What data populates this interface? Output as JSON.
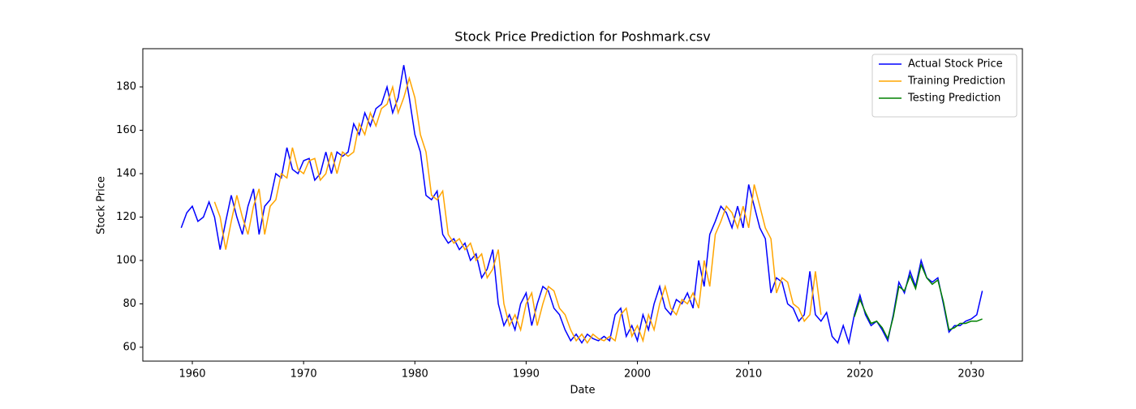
{
  "chart_data": {
    "type": "line",
    "title": "Stock Price Prediction for Poshmark.csv",
    "xlabel": "Date",
    "ylabel": "Stock Price",
    "x": [
      1959,
      1959.5,
      1960,
      1960.5,
      1961,
      1961.5,
      1962,
      1962.5,
      1963,
      1963.5,
      1964,
      1964.5,
      1965,
      1965.5,
      1966,
      1966.5,
      1967,
      1967.5,
      1968,
      1968.5,
      1969,
      1969.5,
      1970,
      1970.5,
      1971,
      1971.5,
      1972,
      1972.5,
      1973,
      1973.5,
      1974,
      1974.5,
      1975,
      1975.5,
      1976,
      1976.5,
      1977,
      1977.5,
      1978,
      1978.5,
      1979,
      1979.5,
      1980,
      1980.5,
      1981,
      1981.5,
      1982,
      1982.5,
      1983,
      1983.5,
      1984,
      1984.5,
      1985,
      1985.5,
      1986,
      1986.5,
      1987,
      1987.5,
      1988,
      1988.5,
      1989,
      1989.5,
      1990,
      1990.5,
      1991,
      1991.5,
      1992,
      1992.5,
      1993,
      1993.5,
      1994,
      1994.5,
      1995,
      1995.5,
      1996,
      1996.5,
      1997,
      1997.5,
      1998,
      1998.5,
      1999,
      1999.5,
      2000,
      2000.5,
      2001,
      2001.5,
      2002,
      2002.5,
      2003,
      2003.5,
      2004,
      2004.5,
      2005,
      2005.5,
      2006,
      2006.5,
      2007,
      2007.5,
      2008,
      2008.5,
      2009,
      2009.5,
      2010,
      2010.5,
      2011,
      2011.5,
      2012,
      2012.5,
      2013,
      2013.5,
      2014,
      2014.5,
      2015,
      2015.5,
      2016,
      2016.5,
      2017,
      2017.5,
      2018,
      2018.5,
      2019,
      2019.5,
      2020,
      2020.5,
      2021,
      2021.5,
      2022,
      2022.5,
      2023,
      2023.5,
      2024,
      2024.5,
      2025,
      2025.5,
      2026,
      2026.5,
      2027,
      2027.5,
      2028,
      2028.5,
      2029,
      2029.5,
      2030,
      2030.5,
      2031
    ],
    "series": [
      {
        "name": "Actual Stock Price",
        "color": "#0000ff",
        "values": [
          115,
          122,
          125,
          118,
          120,
          127,
          120,
          105,
          118,
          130,
          120,
          112,
          125,
          133,
          112,
          125,
          128,
          140,
          138,
          152,
          142,
          140,
          146,
          147,
          137,
          140,
          150,
          140,
          150,
          148,
          150,
          163,
          158,
          168,
          162,
          170,
          172,
          180,
          168,
          175,
          190,
          175,
          158,
          150,
          130,
          128,
          132,
          112,
          108,
          110,
          105,
          108,
          100,
          103,
          92,
          96,
          105,
          80,
          70,
          75,
          68,
          80,
          85,
          70,
          80,
          88,
          86,
          78,
          75,
          68,
          63,
          66,
          62,
          66,
          64,
          63,
          65,
          63,
          75,
          78,
          65,
          70,
          63,
          75,
          68,
          80,
          88,
          78,
          75,
          82,
          80,
          85,
          78,
          100,
          88,
          112,
          118,
          125,
          122,
          115,
          125,
          115,
          135,
          125,
          115,
          110,
          85,
          92,
          90,
          80,
          78,
          72,
          75,
          95,
          75,
          72,
          76,
          65,
          62,
          70,
          62,
          75,
          84,
          75,
          70,
          72,
          68,
          63,
          75,
          90,
          85,
          95,
          88,
          100,
          92,
          90,
          92,
          80,
          67,
          70,
          70,
          72,
          73,
          75,
          86
        ]
      },
      {
        "name": "Training Prediction",
        "color": "#ffa500",
        "values": [
          null,
          null,
          null,
          null,
          null,
          null,
          127,
          120,
          105,
          118,
          130,
          120,
          112,
          125,
          133,
          112,
          125,
          128,
          140,
          138,
          152,
          142,
          140,
          146,
          147,
          137,
          140,
          150,
          140,
          150,
          148,
          150,
          163,
          158,
          168,
          162,
          170,
          172,
          180,
          168,
          175,
          184,
          175,
          158,
          150,
          130,
          128,
          132,
          112,
          108,
          110,
          105,
          108,
          100,
          103,
          92,
          96,
          105,
          80,
          70,
          75,
          68,
          80,
          85,
          70,
          80,
          88,
          86,
          78,
          75,
          68,
          63,
          66,
          62,
          66,
          64,
          63,
          65,
          63,
          75,
          78,
          65,
          70,
          63,
          75,
          68,
          80,
          88,
          78,
          75,
          82,
          80,
          85,
          78,
          100,
          88,
          112,
          118,
          125,
          122,
          115,
          125,
          115,
          135,
          125,
          115,
          110,
          85,
          92,
          90,
          80,
          78,
          72,
          75,
          95,
          75,
          null,
          null,
          null,
          null,
          null,
          null,
          null,
          null,
          null,
          null,
          null,
          null,
          null,
          null,
          null,
          null,
          null,
          null,
          null,
          null,
          null,
          null,
          null,
          null,
          null,
          null,
          null,
          null,
          null
        ]
      },
      {
        "name": "Testing Prediction",
        "color": "#008000",
        "values": [
          null,
          null,
          null,
          null,
          null,
          null,
          null,
          null,
          null,
          null,
          null,
          null,
          null,
          null,
          null,
          null,
          null,
          null,
          null,
          null,
          null,
          null,
          null,
          null,
          null,
          null,
          null,
          null,
          null,
          null,
          null,
          null,
          null,
          null,
          null,
          null,
          null,
          null,
          null,
          null,
          null,
          null,
          null,
          null,
          null,
          null,
          null,
          null,
          null,
          null,
          null,
          null,
          null,
          null,
          null,
          null,
          null,
          null,
          null,
          null,
          null,
          null,
          null,
          null,
          null,
          null,
          null,
          null,
          null,
          null,
          null,
          null,
          null,
          null,
          null,
          null,
          null,
          null,
          null,
          null,
          null,
          null,
          null,
          null,
          null,
          null,
          null,
          null,
          null,
          null,
          null,
          null,
          null,
          null,
          null,
          null,
          null,
          null,
          null,
          null,
          null,
          null,
          null,
          null,
          null,
          null,
          null,
          null,
          null,
          null,
          null,
          null,
          null,
          null,
          null,
          null,
          null,
          null,
          null,
          null,
          null,
          74,
          82,
          76,
          71,
          72,
          69,
          64,
          74,
          88,
          86,
          93,
          87,
          98,
          92,
          89,
          91,
          81,
          68,
          69,
          71,
          71,
          72,
          72,
          73
        ]
      }
    ],
    "xlim": [
      1955.55,
      2034.6
    ],
    "xticks": [
      1960,
      1970,
      1980,
      1990,
      2000,
      2010,
      2020,
      2030
    ],
    "ylim": [
      53.6,
      197.6
    ],
    "yticks": [
      60,
      80,
      100,
      120,
      140,
      160,
      180
    ],
    "legend": "upper right",
    "grid": false
  }
}
